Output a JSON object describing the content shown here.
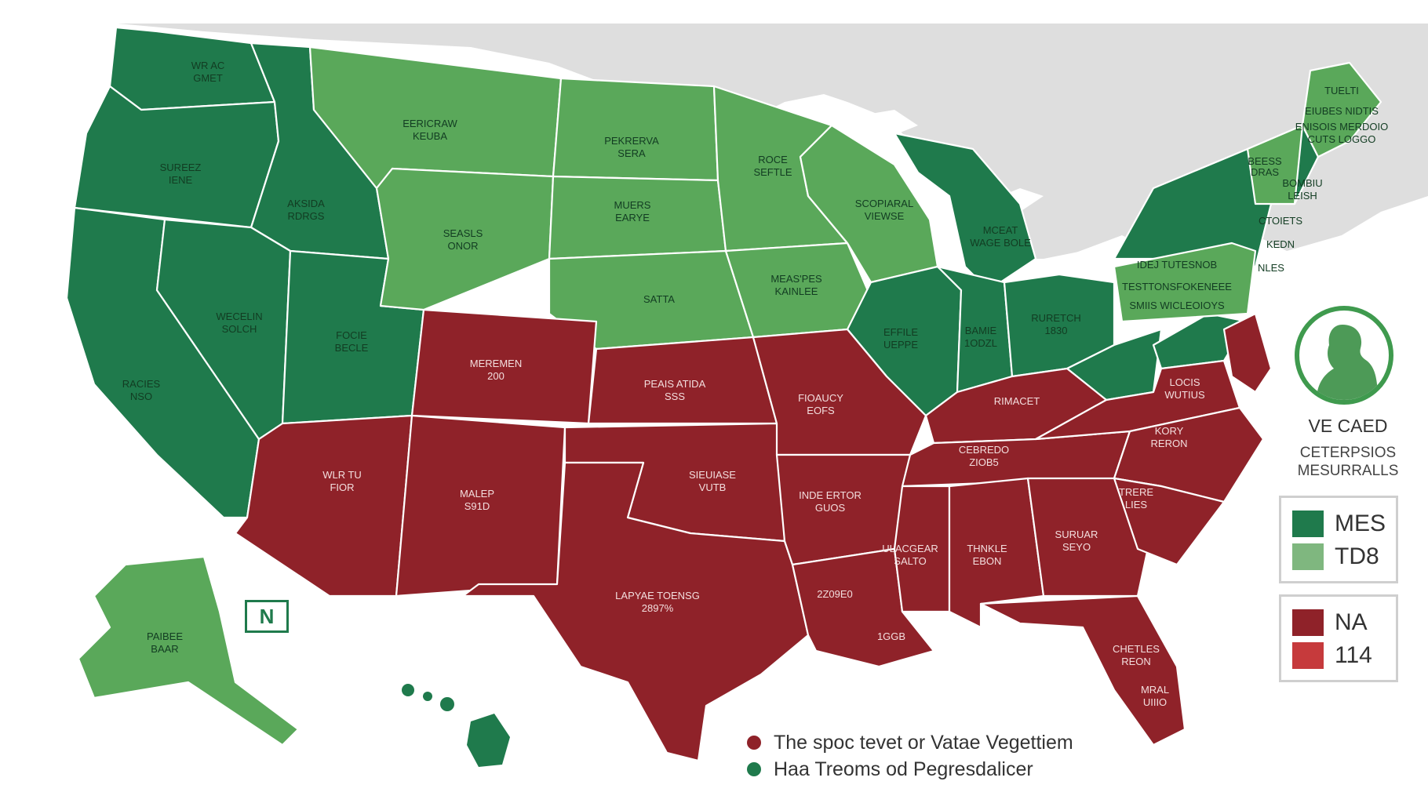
{
  "colors": {
    "dark_green": "#1f7a4c",
    "light_green": "#5aa85a",
    "red": "#8f2229",
    "bright_red": "#c63a3c",
    "land_gray": "#dedede"
  },
  "map_labels": {
    "wa": [
      "WR AC",
      "GMET"
    ],
    "or": [
      "SUREEZ",
      "IENE"
    ],
    "id": [
      "AKSIDA",
      "RDRGS"
    ],
    "mt": [
      "EERICRAW",
      "KEUBA"
    ],
    "nd": [
      "PEKRERVA",
      "SERA"
    ],
    "mn": [
      "ROCE",
      "SEFTLE"
    ],
    "wy": [
      "SEASLS",
      "ONOR"
    ],
    "sd": [
      "MUERS",
      "EARYE"
    ],
    "wi": [
      "SCOPIARAL",
      "VIEWSE"
    ],
    "mi": [
      "MCEAT",
      "WAGE BOLE"
    ],
    "ne": [
      "SATTA"
    ],
    "ia": [
      "MEAS'PES",
      "KAINLEE"
    ],
    "nv": [
      "WECELIN",
      "SOLCH"
    ],
    "ut": [
      "FOCIE",
      "BECLE"
    ],
    "ca": [
      "RACIES",
      "NSO"
    ],
    "co": [
      "MEREMEN",
      "200"
    ],
    "ks": [
      "PEAIS ATIDA",
      "SSS"
    ],
    "il": [
      "EFFILE",
      "UEPPE"
    ],
    "in": [
      "BAMIE",
      "1ODZL"
    ],
    "oh": [
      "RURETCH",
      "1830"
    ],
    "mo": [
      "FIOAUCY",
      "EOFS"
    ],
    "ky": [
      "RIMACET"
    ],
    "wv": [
      "LOCIS",
      "WUTIUS"
    ],
    "tn": [
      "CEBREDO",
      "ZIOB5"
    ],
    "nc": [
      "KORY",
      "RERON"
    ],
    "az": [
      "WLR TU",
      "FIOR"
    ],
    "nm": [
      "MALEP",
      "S91D"
    ],
    "ok": [
      "SIEUIASE",
      "VUTB"
    ],
    "ar": [
      "INDE ERTOR",
      "GUOS"
    ],
    "sc": [
      "TRERE",
      "LIES"
    ],
    "ms": [
      "ULACGEAR",
      "SALTO"
    ],
    "al": [
      "THNKLE",
      "EBON"
    ],
    "ga": [
      "SURUAR",
      "SEYO"
    ],
    "tx": [
      "LAPYAE TOENSG",
      "2897%"
    ],
    "la": [
      "2Z09E0"
    ],
    "la2": [
      "1GGB"
    ],
    "fl": [
      "CHETLES",
      "REON",
      "MRAL",
      "UIIIO"
    ],
    "ak": [
      "PAIBEE",
      "BAAR"
    ],
    "pa": [
      "IDEJ TUTESNOB",
      "TESTTONSFOKENEEE",
      "SMIIS WICLEOIOYS"
    ],
    "ny": [
      "CTOIETS",
      "KEDN"
    ],
    "me": [
      "TUELTI",
      "EIUBES NIDTIS",
      "ENISOIS MERDOIO",
      "CUTS LOGGO"
    ],
    "vt": [
      "BEESS",
      "DRAS"
    ],
    "nh": [
      "BOMBIU",
      "LEISH"
    ],
    "nj": [
      "NLES"
    ]
  },
  "compass_badge": "N",
  "sidebar": {
    "title": "VE CAED",
    "subtitle": "CETERPSIOS MESURRALLS",
    "legend_green": [
      {
        "label": "MES",
        "color": "#1f7a4c"
      },
      {
        "label": "TD8",
        "color": "#7fb77f"
      }
    ],
    "legend_red": [
      {
        "label": "NA",
        "color": "#8f2229"
      },
      {
        "label": "114",
        "color": "#c63a3c"
      }
    ]
  },
  "footer_legend": [
    {
      "label": "The spoc tevet or Vatae Vegettiem",
      "color": "#8f2229"
    },
    {
      "label": "Haa Treoms od Pegresdalicer",
      "color": "#1f7a4c"
    }
  ]
}
